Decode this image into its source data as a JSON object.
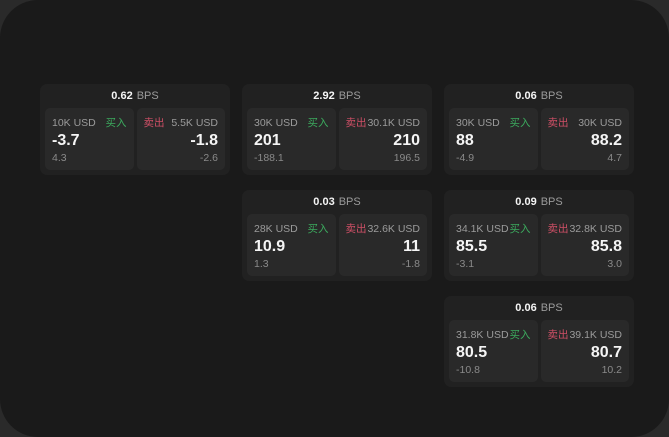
{
  "labels": {
    "bps_unit": "BPS",
    "buy": "买入",
    "sell": "卖出"
  },
  "colors": {
    "backdrop": "#2a2a2a",
    "surface": "#1a1a1a",
    "card_bg": "#212121",
    "tile_bg": "#292929",
    "buy": "#3cab5e",
    "sell": "#cf4f66",
    "value_text": "#f5f5f5",
    "muted_text": "#9b9b9b",
    "delta_text": "#8a8a8a"
  },
  "cards": [
    {
      "row": 1,
      "col": 1,
      "bps": "0.62",
      "buy": {
        "notional": "10K USD",
        "price": "-3.7",
        "delta": "4.3"
      },
      "sell": {
        "notional": "5.5K USD",
        "price": "-1.8",
        "delta": "-2.6"
      }
    },
    {
      "row": 1,
      "col": 2,
      "bps": "2.92",
      "buy": {
        "notional": "30K USD",
        "price": "201",
        "delta": "-188.1"
      },
      "sell": {
        "notional": "30.1K USD",
        "price": "210",
        "delta": "196.5"
      }
    },
    {
      "row": 1,
      "col": 3,
      "bps": "0.06",
      "buy": {
        "notional": "30K USD",
        "price": "88",
        "delta": "-4.9"
      },
      "sell": {
        "notional": "30K USD",
        "price": "88.2",
        "delta": "4.7"
      }
    },
    {
      "row": 2,
      "col": 2,
      "bps": "0.03",
      "buy": {
        "notional": "28K USD",
        "price": "10.9",
        "delta": "1.3"
      },
      "sell": {
        "notional": "32.6K USD",
        "price": "11",
        "delta": "-1.8"
      }
    },
    {
      "row": 2,
      "col": 3,
      "bps": "0.09",
      "buy": {
        "notional": "34.1K USD",
        "price": "85.5",
        "delta": "-3.1"
      },
      "sell": {
        "notional": "32.8K USD",
        "price": "85.8",
        "delta": "3.0"
      }
    },
    {
      "row": 3,
      "col": 3,
      "bps": "0.06",
      "buy": {
        "notional": "31.8K USD",
        "price": "80.5",
        "delta": "-10.8"
      },
      "sell": {
        "notional": "39.1K USD",
        "price": "80.7",
        "delta": "10.2"
      }
    }
  ]
}
